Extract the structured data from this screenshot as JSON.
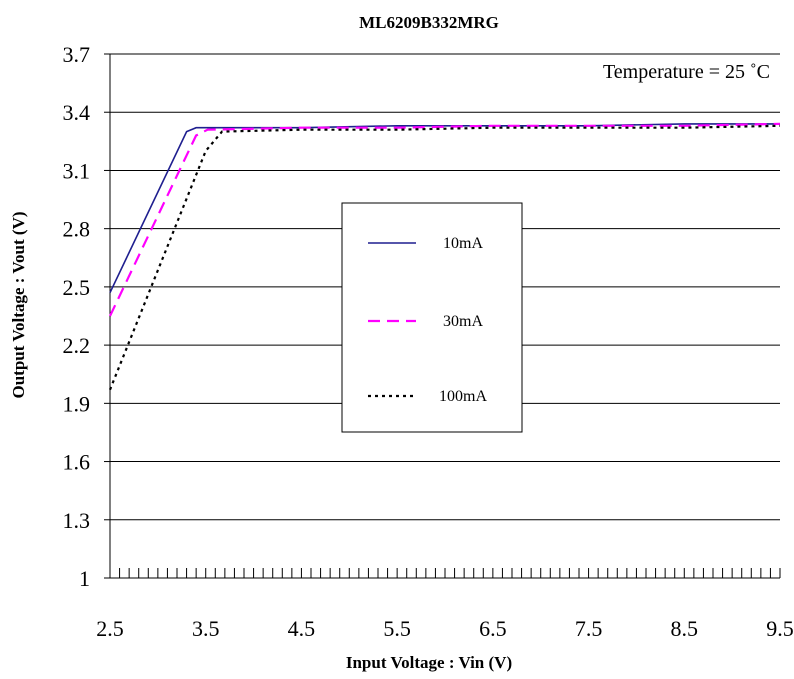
{
  "chart_data": {
    "type": "line",
    "title": "ML6209B332MRG",
    "xlabel": "Input  Voltage : Vin (V)",
    "ylabel": "Output Voltage : Vout (V)",
    "annotation": "Temperature = 25 ˚C",
    "xlim": [
      2.5,
      9.5
    ],
    "ylim": [
      1,
      3.7
    ],
    "x_ticks": [
      "2.5",
      "3.5",
      "4.5",
      "5.5",
      "6.5",
      "7.5",
      "8.5",
      "9.5"
    ],
    "y_ticks": [
      "1",
      "1.3",
      "1.6",
      "1.9",
      "2.2",
      "2.5",
      "2.8",
      "3.1",
      "3.4",
      "3.7"
    ],
    "grid": "horizontal",
    "legend_position": "center",
    "series": [
      {
        "name": "10mA",
        "color": "#1f1f8f",
        "style": "solid",
        "points": [
          [
            2.5,
            2.47
          ],
          [
            3.3,
            3.3
          ],
          [
            3.4,
            3.32
          ],
          [
            4.5,
            3.32
          ],
          [
            5.5,
            3.33
          ],
          [
            6.5,
            3.33
          ],
          [
            7.5,
            3.33
          ],
          [
            8.5,
            3.34
          ],
          [
            9.5,
            3.34
          ]
        ]
      },
      {
        "name": "30mA",
        "color": "#ff00ff",
        "style": "dashed",
        "points": [
          [
            2.5,
            2.35
          ],
          [
            3.4,
            3.28
          ],
          [
            3.52,
            3.31
          ],
          [
            4.5,
            3.32
          ],
          [
            5.5,
            3.32
          ],
          [
            6.5,
            3.33
          ],
          [
            7.5,
            3.33
          ],
          [
            8.5,
            3.33
          ],
          [
            9.5,
            3.34
          ]
        ]
      },
      {
        "name": "100mA",
        "color": "#000000",
        "style": "dotted",
        "points": [
          [
            2.5,
            1.97
          ],
          [
            3.5,
            3.2
          ],
          [
            3.67,
            3.3
          ],
          [
            4.5,
            3.31
          ],
          [
            5.5,
            3.31
          ],
          [
            6.5,
            3.32
          ],
          [
            7.5,
            3.32
          ],
          [
            8.5,
            3.32
          ],
          [
            9.5,
            3.33
          ]
        ]
      }
    ]
  }
}
